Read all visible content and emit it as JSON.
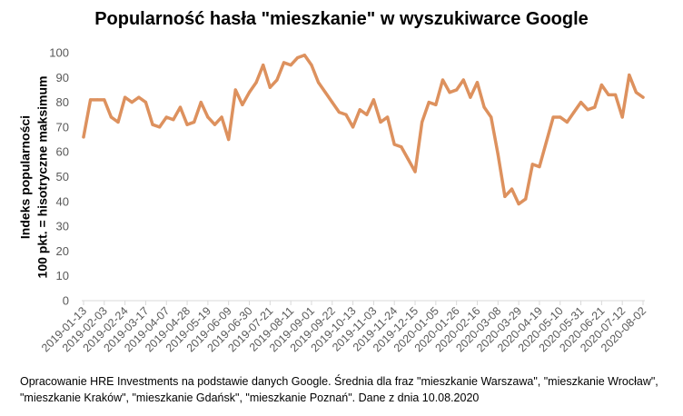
{
  "chart_data": {
    "type": "line",
    "title": "Popularność hasła \"mieszkanie\" w wyszukiwarce Google",
    "ylabel_lines": [
      "Indeks popularności",
      "100 pkt. = hisotryczne maksimum"
    ],
    "xlabel": "",
    "ylim": [
      0,
      100
    ],
    "yticks": [
      0,
      10,
      20,
      30,
      40,
      50,
      60,
      70,
      80,
      90,
      100
    ],
    "grid": false,
    "legend": "none",
    "colors": {
      "line": "#dd915e",
      "axis": "#d9d9d9",
      "tick_text": "#595959"
    },
    "x_tick_labels": [
      "2019-01-13",
      "2019-02-03",
      "2019-02-24",
      "2019-03-17",
      "2019-04-07",
      "2019-04-28",
      "2019-05-19",
      "2019-06-09",
      "2019-06-30",
      "2019-07-21",
      "2019-08-11",
      "2019-09-01",
      "2019-09-22",
      "2019-10-13",
      "2019-11-03",
      "2019-11-24",
      "2019-12-15",
      "2020-01-05",
      "2020-01-26",
      "2020-02-16",
      "2020-03-08",
      "2020-03-29",
      "2020-04-19",
      "2020-05-10",
      "2020-05-31",
      "2020-06-21",
      "2020-07-12",
      "2020-08-02"
    ],
    "series": [
      {
        "values": [
          66,
          81,
          81,
          81,
          74,
          72,
          82,
          80,
          82,
          80,
          71,
          70,
          74,
          73,
          78,
          71,
          72,
          80,
          74,
          71,
          74,
          65,
          85,
          79,
          84,
          88,
          95,
          86,
          89,
          96,
          95,
          98,
          99,
          95,
          88,
          84,
          80,
          76,
          75,
          70,
          77,
          75,
          81,
          72,
          74,
          63,
          62,
          57,
          52,
          72,
          80,
          79,
          89,
          84,
          85,
          89,
          82,
          88,
          78,
          74,
          59,
          42,
          45,
          39,
          41,
          55,
          54,
          64,
          74,
          74,
          72,
          76,
          80,
          77,
          78,
          87,
          83,
          83,
          74,
          91,
          84,
          82
        ]
      }
    ]
  },
  "footnote": "Opracowanie HRE Investments na podstawie danych Google. Średnia dla fraz \"mieszkanie Warszawa\", \"mieszkanie Wrocław\", \"mieszkanie Kraków\", \"mieszkanie Gdańsk\", \"mieszkanie Poznań\". Dane z dnia 10.08.2020"
}
